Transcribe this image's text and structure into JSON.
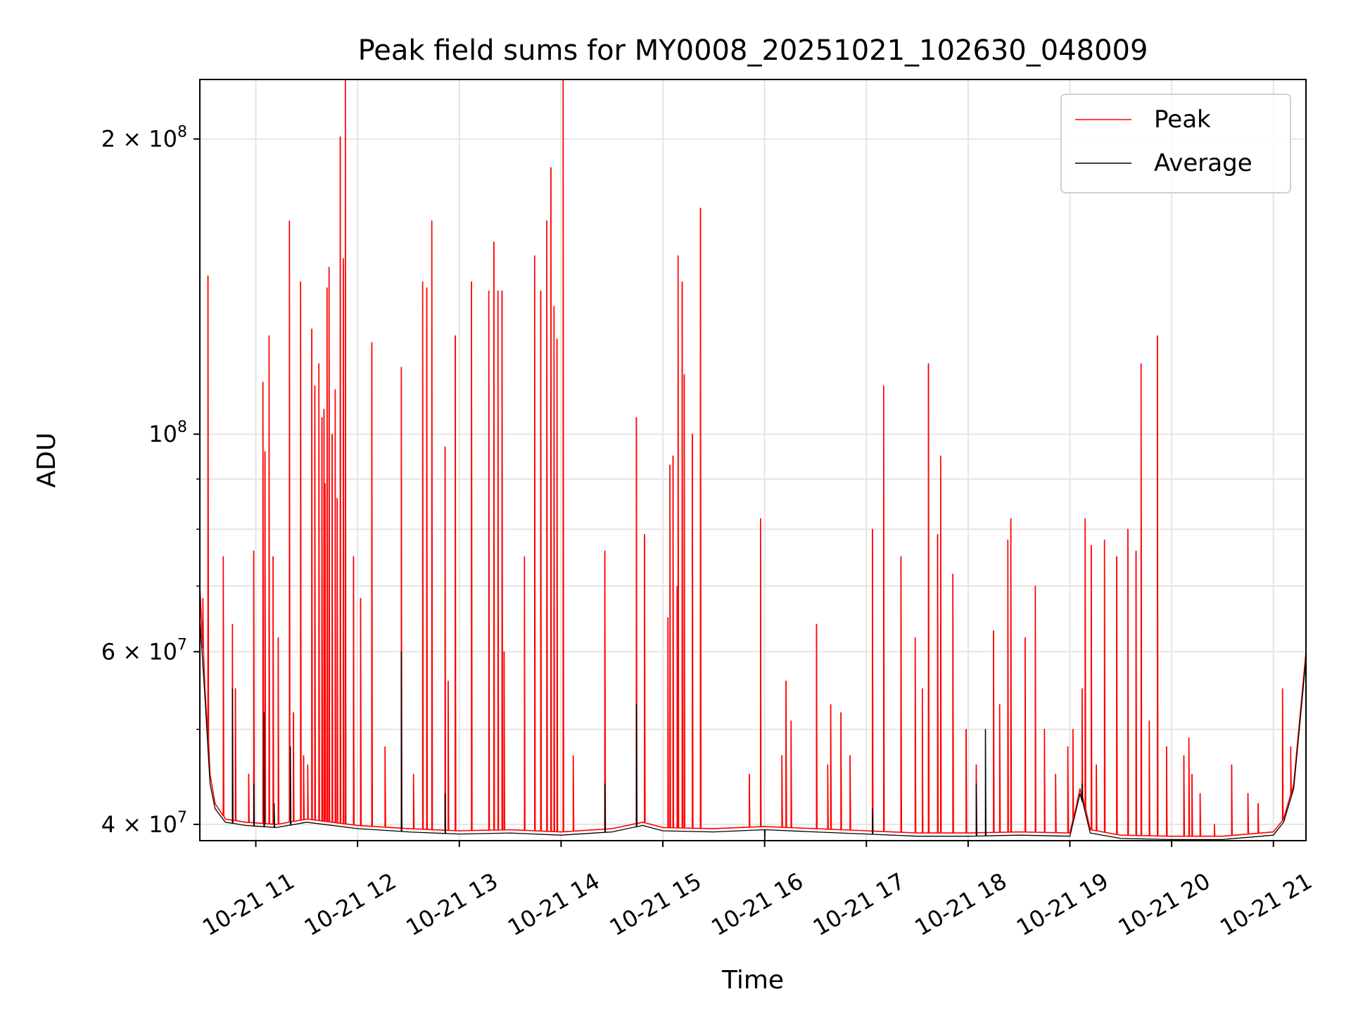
{
  "chart_data": {
    "type": "line",
    "title": "Peak field sums for MY0008_20251021_102630_048009",
    "xlabel": "Time",
    "ylabel": "ADU",
    "yscale": "log",
    "xlim": [
      10.45,
      21.32
    ],
    "ylim": [
      38500000,
      230000000
    ],
    "x_ticks": [
      {
        "value": 11,
        "label": "10-21 11"
      },
      {
        "value": 12,
        "label": "10-21 12"
      },
      {
        "value": 13,
        "label": "10-21 13"
      },
      {
        "value": 14,
        "label": "10-21 14"
      },
      {
        "value": 15,
        "label": "10-21 15"
      },
      {
        "value": 16,
        "label": "10-21 16"
      },
      {
        "value": 17,
        "label": "10-21 17"
      },
      {
        "value": 18,
        "label": "10-21 18"
      },
      {
        "value": 19,
        "label": "10-21 19"
      },
      {
        "value": 20,
        "label": "10-21 20"
      },
      {
        "value": 21,
        "label": "10-21 21"
      }
    ],
    "y_major_ticks": [
      {
        "value": 40000000,
        "base": "4",
        "exp": "7"
      },
      {
        "value": 60000000,
        "base": "6",
        "exp": "7"
      },
      {
        "value": 100000000,
        "base": "",
        "exp": "8"
      },
      {
        "value": 200000000,
        "base": "2",
        "exp": "8"
      }
    ],
    "y_minor_ticks": [
      50000000,
      70000000,
      80000000,
      90000000
    ],
    "grid": true,
    "legend_position": "top-right",
    "series": [
      {
        "name": "Peak",
        "color": "#ff0000",
        "baseline": [
          [
            10.45,
            70000000
          ],
          [
            10.5,
            55000000
          ],
          [
            10.55,
            45000000
          ],
          [
            10.6,
            42000000
          ],
          [
            10.7,
            40500000
          ],
          [
            10.9,
            40200000
          ],
          [
            11.2,
            40000000
          ],
          [
            11.5,
            40500000
          ],
          [
            12.0,
            39900000
          ],
          [
            12.5,
            39600000
          ],
          [
            13.0,
            39400000
          ],
          [
            13.5,
            39500000
          ],
          [
            14.0,
            39300000
          ],
          [
            14.5,
            39600000
          ],
          [
            14.8,
            40200000
          ],
          [
            15.0,
            39700000
          ],
          [
            15.5,
            39600000
          ],
          [
            16.0,
            39800000
          ],
          [
            16.5,
            39600000
          ],
          [
            17.0,
            39400000
          ],
          [
            17.5,
            39200000
          ],
          [
            18.0,
            39200000
          ],
          [
            18.5,
            39300000
          ],
          [
            19.0,
            39200000
          ],
          [
            19.1,
            43500000
          ],
          [
            19.2,
            39500000
          ],
          [
            19.5,
            39000000
          ],
          [
            20.0,
            38900000
          ],
          [
            20.5,
            38900000
          ],
          [
            21.0,
            39300000
          ],
          [
            21.1,
            40500000
          ],
          [
            21.2,
            44000000
          ],
          [
            21.32,
            60000000
          ]
        ],
        "spikes": [
          [
            10.48,
            68000000
          ],
          [
            10.53,
            145000000
          ],
          [
            10.68,
            75000000
          ],
          [
            10.77,
            64000000
          ],
          [
            10.8,
            55000000
          ],
          [
            10.93,
            45000000
          ],
          [
            10.98,
            76000000
          ],
          [
            11.07,
            113000000
          ],
          [
            11.09,
            96000000
          ],
          [
            11.13,
            126000000
          ],
          [
            11.17,
            75000000
          ],
          [
            11.22,
            62000000
          ],
          [
            11.33,
            165000000
          ],
          [
            11.37,
            52000000
          ],
          [
            11.44,
            143000000
          ],
          [
            11.47,
            47000000
          ],
          [
            11.51,
            46000000
          ],
          [
            11.55,
            128000000
          ],
          [
            11.58,
            112000000
          ],
          [
            11.62,
            118000000
          ],
          [
            11.65,
            104000000
          ],
          [
            11.67,
            106000000
          ],
          [
            11.68,
            89000000
          ],
          [
            11.7,
            141000000
          ],
          [
            11.72,
            148000000
          ],
          [
            11.75,
            100000000
          ],
          [
            11.78,
            111000000
          ],
          [
            11.8,
            86000000
          ],
          [
            11.83,
            201000000
          ],
          [
            11.86,
            151000000
          ],
          [
            11.88,
            230000000
          ],
          [
            11.96,
            75000000
          ],
          [
            12.03,
            68000000
          ],
          [
            12.14,
            124000000
          ],
          [
            12.27,
            48000000
          ],
          [
            12.43,
            117000000
          ],
          [
            12.55,
            45000000
          ],
          [
            12.64,
            143000000
          ],
          [
            12.68,
            141000000
          ],
          [
            12.73,
            165000000
          ],
          [
            12.86,
            97000000
          ],
          [
            12.89,
            56000000
          ],
          [
            12.96,
            126000000
          ],
          [
            13.12,
            143000000
          ],
          [
            13.29,
            140000000
          ],
          [
            13.34,
            157000000
          ],
          [
            13.38,
            140000000
          ],
          [
            13.42,
            140000000
          ],
          [
            13.44,
            60000000
          ],
          [
            13.64,
            75000000
          ],
          [
            13.74,
            152000000
          ],
          [
            13.8,
            140000000
          ],
          [
            13.86,
            165000000
          ],
          [
            13.9,
            187000000
          ],
          [
            13.93,
            135000000
          ],
          [
            13.96,
            125000000
          ],
          [
            14.02,
            230000000
          ],
          [
            14.12,
            47000000
          ],
          [
            14.43,
            76000000
          ],
          [
            14.74,
            104000000
          ],
          [
            14.82,
            79000000
          ],
          [
            15.05,
            65000000
          ],
          [
            15.07,
            93000000
          ],
          [
            15.1,
            95000000
          ],
          [
            15.14,
            70000000
          ],
          [
            15.15,
            152000000
          ],
          [
            15.19,
            143000000
          ],
          [
            15.21,
            115000000
          ],
          [
            15.29,
            100000000
          ],
          [
            15.37,
            170000000
          ],
          [
            15.85,
            45000000
          ],
          [
            15.96,
            82000000
          ],
          [
            16.17,
            47000000
          ],
          [
            16.21,
            56000000
          ],
          [
            16.26,
            51000000
          ],
          [
            16.51,
            64000000
          ],
          [
            16.62,
            46000000
          ],
          [
            16.65,
            53000000
          ],
          [
            16.75,
            52000000
          ],
          [
            16.84,
            47000000
          ],
          [
            17.06,
            80000000
          ],
          [
            17.17,
            112000000
          ],
          [
            17.34,
            75000000
          ],
          [
            17.48,
            62000000
          ],
          [
            17.55,
            55000000
          ],
          [
            17.61,
            118000000
          ],
          [
            17.7,
            79000000
          ],
          [
            17.73,
            95000000
          ],
          [
            17.85,
            72000000
          ],
          [
            17.98,
            50000000
          ],
          [
            18.08,
            46000000
          ],
          [
            18.25,
            63000000
          ],
          [
            18.31,
            53000000
          ],
          [
            18.39,
            78000000
          ],
          [
            18.42,
            82000000
          ],
          [
            18.56,
            62000000
          ],
          [
            18.66,
            70000000
          ],
          [
            18.75,
            50000000
          ],
          [
            18.86,
            45000000
          ],
          [
            18.98,
            48000000
          ],
          [
            19.03,
            50000000
          ],
          [
            19.12,
            55000000
          ],
          [
            19.15,
            82000000
          ],
          [
            19.21,
            77000000
          ],
          [
            19.26,
            46000000
          ],
          [
            19.34,
            78000000
          ],
          [
            19.46,
            75000000
          ],
          [
            19.57,
            80000000
          ],
          [
            19.65,
            76000000
          ],
          [
            19.7,
            118000000
          ],
          [
            19.78,
            51000000
          ],
          [
            19.86,
            126000000
          ],
          [
            19.95,
            48000000
          ],
          [
            20.12,
            47000000
          ],
          [
            20.17,
            49000000
          ],
          [
            20.2,
            45000000
          ],
          [
            20.28,
            43000000
          ],
          [
            20.42,
            40000000
          ],
          [
            20.59,
            46000000
          ],
          [
            20.75,
            43000000
          ],
          [
            20.85,
            42000000
          ],
          [
            21.09,
            55000000
          ],
          [
            21.17,
            48000000
          ]
        ]
      },
      {
        "name": "Average",
        "color": "#000000",
        "baseline": [
          [
            10.45,
            65000000
          ],
          [
            10.5,
            54000000
          ],
          [
            10.55,
            44000000
          ],
          [
            10.6,
            41500000
          ],
          [
            10.7,
            40200000
          ],
          [
            10.9,
            39900000
          ],
          [
            11.2,
            39700000
          ],
          [
            11.5,
            40200000
          ],
          [
            12.0,
            39600000
          ],
          [
            12.5,
            39300000
          ],
          [
            13.0,
            39100000
          ],
          [
            13.5,
            39200000
          ],
          [
            14.0,
            39000000
          ],
          [
            14.5,
            39300000
          ],
          [
            14.8,
            39900000
          ],
          [
            15.0,
            39400000
          ],
          [
            15.5,
            39300000
          ],
          [
            16.0,
            39500000
          ],
          [
            16.5,
            39300000
          ],
          [
            17.0,
            39100000
          ],
          [
            17.5,
            38900000
          ],
          [
            18.0,
            38900000
          ],
          [
            18.5,
            39000000
          ],
          [
            19.0,
            38900000
          ],
          [
            19.1,
            43000000
          ],
          [
            19.2,
            39200000
          ],
          [
            19.5,
            38700000
          ],
          [
            20.0,
            38600000
          ],
          [
            20.5,
            38600000
          ],
          [
            21.0,
            39000000
          ],
          [
            21.1,
            40200000
          ],
          [
            21.2,
            43500000
          ],
          [
            21.32,
            59000000
          ]
        ],
        "spikes": [
          [
            10.77,
            55000000
          ],
          [
            10.98,
            44000000
          ],
          [
            11.08,
            52000000
          ],
          [
            11.18,
            42000000
          ],
          [
            11.34,
            48000000
          ],
          [
            12.43,
            60000000
          ],
          [
            12.86,
            43000000
          ],
          [
            14.43,
            44000000
          ],
          [
            14.74,
            53000000
          ],
          [
            16.0,
            37800000
          ],
          [
            17.06,
            41500000
          ],
          [
            18.08,
            44000000
          ],
          [
            18.17,
            50000000
          ],
          [
            19.12,
            44000000
          ]
        ]
      }
    ]
  }
}
